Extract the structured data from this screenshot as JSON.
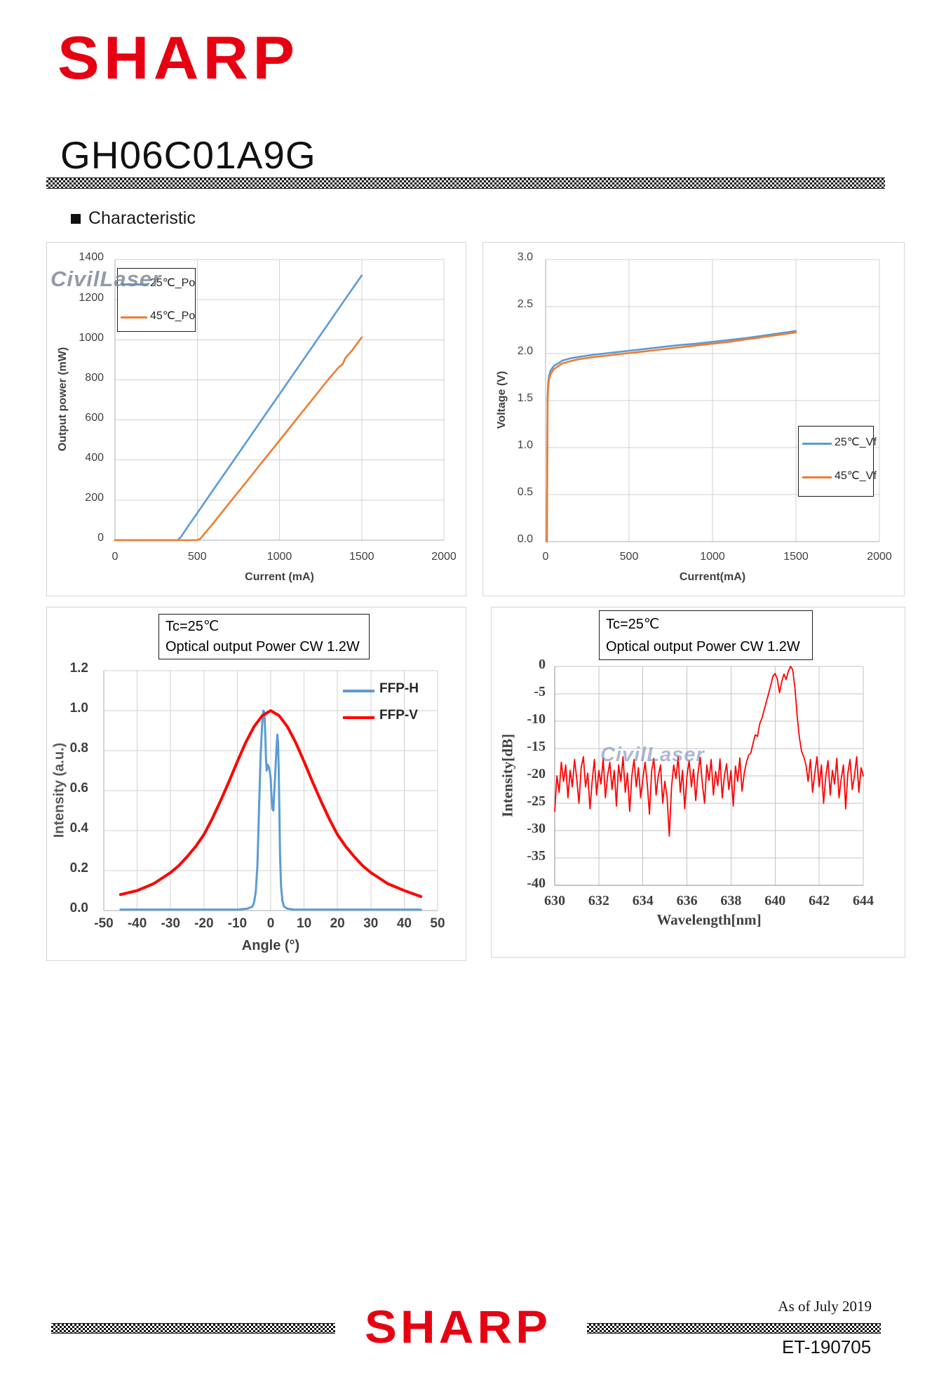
{
  "header": {
    "brand": "SHARP",
    "part_number": "GH06C01A9G",
    "section_title": "Characteristic"
  },
  "watermark": {
    "text": "CivilLaser"
  },
  "footer": {
    "as_of": "As of  July 2019",
    "brand": "SHARP",
    "doc_number": "ET-190705"
  },
  "chart_data": [
    {
      "id": "li",
      "type": "line",
      "title": "",
      "xlabel": "Current (mA)",
      "ylabel": "Output power (mW)",
      "xlim": [
        0,
        2000
      ],
      "ylim": [
        0,
        1400
      ],
      "grid": true,
      "xtick_values": [
        0,
        500,
        1000,
        1500,
        2000
      ],
      "xtick_labels": [
        "0",
        "500",
        "1000",
        "1500",
        "2000"
      ],
      "ytick_values": [
        0,
        200,
        400,
        600,
        800,
        1000,
        1200,
        1400
      ],
      "ytick_labels": [
        "0",
        "200",
        "400",
        "600",
        "800",
        "1000",
        "1200",
        "1400"
      ],
      "legend": {
        "position": "upper-left",
        "boxed": true,
        "entries": [
          {
            "label": "25℃_Po",
            "color": "#5B9BD5"
          },
          {
            "label": "45℃_Po",
            "color": "#ED7D31"
          }
        ]
      },
      "series": [
        {
          "name": "25℃_Po",
          "color": "#5B9BD5",
          "points": [
            [
              0,
              0
            ],
            [
              150,
              0
            ],
            [
              300,
              0
            ],
            [
              380,
              0
            ],
            [
              400,
              15
            ],
            [
              420,
              40
            ],
            [
              450,
              76
            ],
            [
              500,
              135
            ],
            [
              600,
              254
            ],
            [
              700,
              372
            ],
            [
              800,
              491
            ],
            [
              900,
              610
            ],
            [
              1000,
              728
            ],
            [
              1100,
              847
            ],
            [
              1200,
              965
            ],
            [
              1300,
              1084
            ],
            [
              1400,
              1203
            ],
            [
              1500,
              1321
            ]
          ]
        },
        {
          "name": "45℃_Po",
          "color": "#ED7D31",
          "points": [
            [
              0,
              0
            ],
            [
              200,
              0
            ],
            [
              400,
              0
            ],
            [
              500,
              0
            ],
            [
              520,
              8
            ],
            [
              550,
              38
            ],
            [
              580,
              67
            ],
            [
              650,
              139
            ],
            [
              700,
              190
            ],
            [
              800,
              292
            ],
            [
              900,
              395
            ],
            [
              1000,
              497
            ],
            [
              1100,
              600
            ],
            [
              1200,
              702
            ],
            [
              1300,
              805
            ],
            [
              1360,
              862
            ],
            [
              1385,
              880
            ],
            [
              1400,
              908
            ],
            [
              1440,
              945
            ],
            [
              1500,
              1012
            ]
          ]
        }
      ]
    },
    {
      "id": "vf",
      "type": "line",
      "title": "",
      "xlabel": "Current(mA)",
      "ylabel": "Voltage (V)",
      "xlim": [
        0,
        2000
      ],
      "ylim": [
        0,
        3
      ],
      "grid": true,
      "xtick_values": [
        0,
        500,
        1000,
        1500,
        2000
      ],
      "xtick_labels": [
        "0",
        "500",
        "1000",
        "1500",
        "2000"
      ],
      "ytick_values": [
        0,
        0.5,
        1,
        1.5,
        2,
        2.5,
        3
      ],
      "ytick_labels": [
        "0.0",
        "0.5",
        "1.0",
        "1.5",
        "2.0",
        "2.5",
        "3.0"
      ],
      "legend": {
        "position": "middle-right",
        "boxed": true,
        "entries": [
          {
            "label": "25℃_Vf",
            "color": "#5B9BD5"
          },
          {
            "label": "45℃_Vf",
            "color": "#ED7D31"
          }
        ]
      },
      "series": [
        {
          "name": "25℃_Vf",
          "color": "#5B9BD5",
          "points": [
            [
              8,
              0
            ],
            [
              10,
              0.9
            ],
            [
              12,
              1.55
            ],
            [
              15,
              1.68
            ],
            [
              20,
              1.76
            ],
            [
              30,
              1.82
            ],
            [
              50,
              1.87
            ],
            [
              80,
              1.9
            ],
            [
              100,
              1.925
            ],
            [
              150,
              1.95
            ],
            [
              200,
              1.965
            ],
            [
              300,
              1.99
            ],
            [
              400,
              2.01
            ],
            [
              500,
              2.03
            ],
            [
              600,
              2.05
            ],
            [
              700,
              2.07
            ],
            [
              800,
              2.09
            ],
            [
              900,
              2.105
            ],
            [
              1000,
              2.125
            ],
            [
              1100,
              2.145
            ],
            [
              1200,
              2.165
            ],
            [
              1300,
              2.19
            ],
            [
              1400,
              2.215
            ],
            [
              1500,
              2.24
            ]
          ]
        },
        {
          "name": "45℃_Vf",
          "color": "#ED7D31",
          "points": [
            [
              8,
              0
            ],
            [
              10,
              0.8
            ],
            [
              12,
              1.5
            ],
            [
              15,
              1.63
            ],
            [
              20,
              1.72
            ],
            [
              30,
              1.78
            ],
            [
              50,
              1.835
            ],
            [
              80,
              1.87
            ],
            [
              100,
              1.895
            ],
            [
              150,
              1.92
            ],
            [
              200,
              1.94
            ],
            [
              300,
              1.965
            ],
            [
              400,
              1.985
            ],
            [
              500,
              2.005
            ],
            [
              600,
              2.025
            ],
            [
              700,
              2.045
            ],
            [
              800,
              2.065
            ],
            [
              900,
              2.085
            ],
            [
              1000,
              2.105
            ],
            [
              1100,
              2.125
            ],
            [
              1200,
              2.15
            ],
            [
              1300,
              2.175
            ],
            [
              1400,
              2.2
            ],
            [
              1500,
              2.225
            ]
          ]
        }
      ]
    },
    {
      "id": "ffp",
      "type": "line",
      "title": "",
      "annotation": [
        "Tc=25℃",
        "Optical output Power CW 1.2W"
      ],
      "xlabel": "Angle (°)",
      "ylabel": "Intensity (a.u.)",
      "xlim": [
        -50,
        50
      ],
      "ylim": [
        0,
        1.2
      ],
      "grid": true,
      "xtick_values": [
        -50,
        -40,
        -30,
        -20,
        -10,
        0,
        10,
        20,
        30,
        40,
        50
      ],
      "xtick_labels": [
        "-50",
        "-40",
        "-30",
        "-20",
        "-10",
        "0",
        "10",
        "20",
        "30",
        "40",
        "50"
      ],
      "ytick_values": [
        0,
        0.2,
        0.4,
        0.6,
        0.8,
        1,
        1.2
      ],
      "ytick_labels": [
        "0.0",
        "0.2",
        "0.4",
        "0.6",
        "0.8",
        "1.0",
        "1.2"
      ],
      "legend": {
        "position": "upper-right",
        "boxed": false,
        "entries": [
          {
            "label": "FFP-H",
            "color": "#5B9BD5"
          },
          {
            "label": "FFP-V",
            "color": "#FF0000"
          }
        ]
      },
      "series": [
        {
          "name": "FFP-H",
          "color": "#5B9BD5",
          "points": [
            [
              -45,
              0.005
            ],
            [
              -20,
              0.005
            ],
            [
              -10,
              0.005
            ],
            [
              -7,
              0.01
            ],
            [
              -5.5,
              0.02
            ],
            [
              -5,
              0.04
            ],
            [
              -4.5,
              0.09
            ],
            [
              -4,
              0.22
            ],
            [
              -3.5,
              0.5
            ],
            [
              -3,
              0.78
            ],
            [
              -2.6,
              0.92
            ],
            [
              -2.2,
              1.0
            ],
            [
              -1.9,
              0.99
            ],
            [
              -1.6,
              0.87
            ],
            [
              -1.4,
              0.76
            ],
            [
              -1.2,
              0.7
            ],
            [
              -0.9,
              0.73
            ],
            [
              -0.6,
              0.72
            ],
            [
              -0.3,
              0.7
            ],
            [
              0,
              0.66
            ],
            [
              0.2,
              0.58
            ],
            [
              0.5,
              0.51
            ],
            [
              0.8,
              0.5
            ],
            [
              1.1,
              0.6
            ],
            [
              1.4,
              0.7
            ],
            [
              1.7,
              0.8
            ],
            [
              2,
              0.88
            ],
            [
              2.2,
              0.84
            ],
            [
              2.4,
              0.72
            ],
            [
              2.6,
              0.5
            ],
            [
              2.8,
              0.28
            ],
            [
              3.1,
              0.12
            ],
            [
              3.5,
              0.05
            ],
            [
              4,
              0.02
            ],
            [
              5,
              0.01
            ],
            [
              7,
              0.005
            ],
            [
              15,
              0.005
            ],
            [
              45,
              0.005
            ]
          ]
        },
        {
          "name": "FFP-V",
          "color": "#FF0000",
          "points": [
            [
              -45,
              0.08
            ],
            [
              -40,
              0.1
            ],
            [
              -35,
              0.135
            ],
            [
              -30,
              0.19
            ],
            [
              -27.5,
              0.225
            ],
            [
              -25,
              0.27
            ],
            [
              -22.5,
              0.32
            ],
            [
              -20,
              0.38
            ],
            [
              -17.5,
              0.46
            ],
            [
              -15,
              0.55
            ],
            [
              -12.5,
              0.645
            ],
            [
              -10,
              0.745
            ],
            [
              -7.5,
              0.84
            ],
            [
              -5,
              0.92
            ],
            [
              -2.5,
              0.975
            ],
            [
              0,
              1.0
            ],
            [
              2.5,
              0.975
            ],
            [
              5,
              0.92
            ],
            [
              7.5,
              0.84
            ],
            [
              10,
              0.745
            ],
            [
              12.5,
              0.645
            ],
            [
              15,
              0.55
            ],
            [
              17.5,
              0.46
            ],
            [
              20,
              0.38
            ],
            [
              22.5,
              0.32
            ],
            [
              25,
              0.27
            ],
            [
              27.5,
              0.225
            ],
            [
              30,
              0.19
            ],
            [
              35,
              0.135
            ],
            [
              40,
              0.1
            ],
            [
              45,
              0.07
            ]
          ]
        }
      ]
    },
    {
      "id": "spectrum",
      "type": "line",
      "title": "",
      "annotation": [
        "Tc=25℃",
        "Optical output Power CW 1.2W"
      ],
      "xlabel": "Wavelength[nm]",
      "ylabel": "Intensity[dB]",
      "xlim": [
        630,
        644
      ],
      "ylim": [
        -40,
        0
      ],
      "grid": true,
      "xtick_values": [
        630,
        632,
        634,
        636,
        638,
        640,
        642,
        644
      ],
      "xtick_labels": [
        "630",
        "632",
        "634",
        "636",
        "638",
        "640",
        "642",
        "644"
      ],
      "ytick_values": [
        0,
        -5,
        -10,
        -15,
        -20,
        -25,
        -30,
        -35,
        -40
      ],
      "ytick_labels": [
        "0",
        "-5",
        "-10",
        "-15",
        "-20",
        "-25",
        "-30",
        "-35",
        "-40"
      ],
      "peak_wavelength_nm": 640.7,
      "series": [
        {
          "name": "spectrum",
          "color": "#FF0000",
          "x_start": 630,
          "x_step": 0.1,
          "values": [
            -26.5,
            -20,
            -23,
            -17.5,
            -21,
            -18,
            -24,
            -19,
            -22,
            -17,
            -20.5,
            -25,
            -18.5,
            -16.5,
            -22,
            -19.5,
            -26,
            -21,
            -17,
            -23.5,
            -19,
            -21.5,
            -16.8,
            -24,
            -20,
            -17.5,
            -22.5,
            -19,
            -25.5,
            -18,
            -21,
            -16.5,
            -23,
            -19.5,
            -26.5,
            -20,
            -17,
            -22,
            -18.5,
            -24,
            -20.5,
            -17.5,
            -21.5,
            -27,
            -19,
            -16.8,
            -23.5,
            -20,
            -18,
            -25,
            -21,
            -24,
            -31,
            -22,
            -18,
            -20.5,
            -16.5,
            -23,
            -19,
            -26,
            -20,
            -17.2,
            -22,
            -18.8,
            -24.5,
            -19.5,
            -16.6,
            -21.5,
            -25,
            -18,
            -20.8,
            -17,
            -23.5,
            -19.2,
            -21.8,
            -16.9,
            -24,
            -20,
            -17.8,
            -22.5,
            -19,
            -25.5,
            -18.2,
            -21,
            -16.7,
            -22.8,
            -19.5,
            -17.5,
            -16.2,
            -15.8,
            -14,
            -12.5,
            -12.8,
            -10.5,
            -9.5,
            -8,
            -6.5,
            -5,
            -3.5,
            -1.8,
            -1.3,
            -2.3,
            -4.8,
            -2.8,
            -1.4,
            -2.4,
            -0.9,
            0,
            -0.6,
            -4,
            -9,
            -13,
            -15.5,
            -16.5,
            -18,
            -21,
            -17,
            -23,
            -19.5,
            -16.5,
            -22,
            -18,
            -25,
            -20,
            -17.2,
            -23.5,
            -19,
            -21.5,
            -16.8,
            -24,
            -20.5,
            -18,
            -26,
            -19.5,
            -17,
            -22.5,
            -20,
            -16.5,
            -23,
            -18.5,
            -20
          ]
        }
      ]
    }
  ]
}
